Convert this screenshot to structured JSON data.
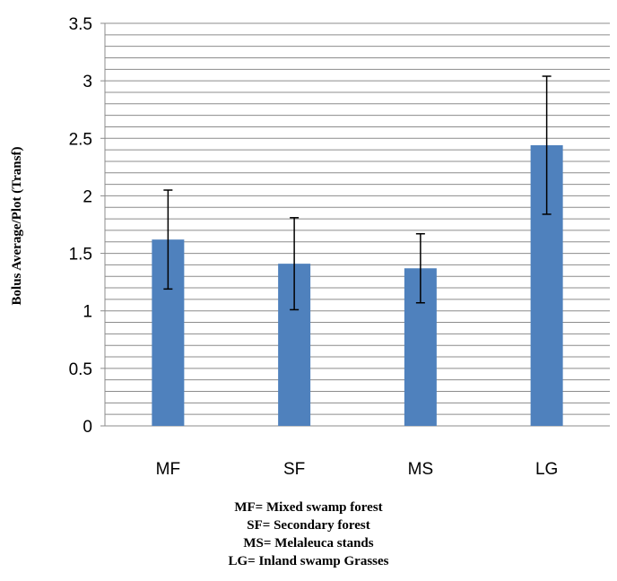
{
  "chart_data": {
    "type": "bar",
    "categories": [
      "MF",
      "SF",
      "MS",
      "LG"
    ],
    "series": [
      {
        "values": [
          1.62,
          1.41,
          1.37,
          2.44
        ],
        "error": [
          0.43,
          0.4,
          0.3,
          0.6
        ]
      }
    ],
    "ylabel": "Bolus Average/Plot (Transf)",
    "xlabel": "",
    "ylim": [
      0,
      3.5
    ],
    "yticks": [
      "0",
      "0.5",
      "1",
      "1.5",
      "2",
      "2.5",
      "3",
      "3.5"
    ],
    "grid": true,
    "bar_color": "#4F81BD",
    "legend_notes": [
      "MF= Mixed swamp forest",
      "SF= Secondary forest",
      "MS= Melaleuca stands",
      "LG= Inland swamp Grasses"
    ]
  }
}
